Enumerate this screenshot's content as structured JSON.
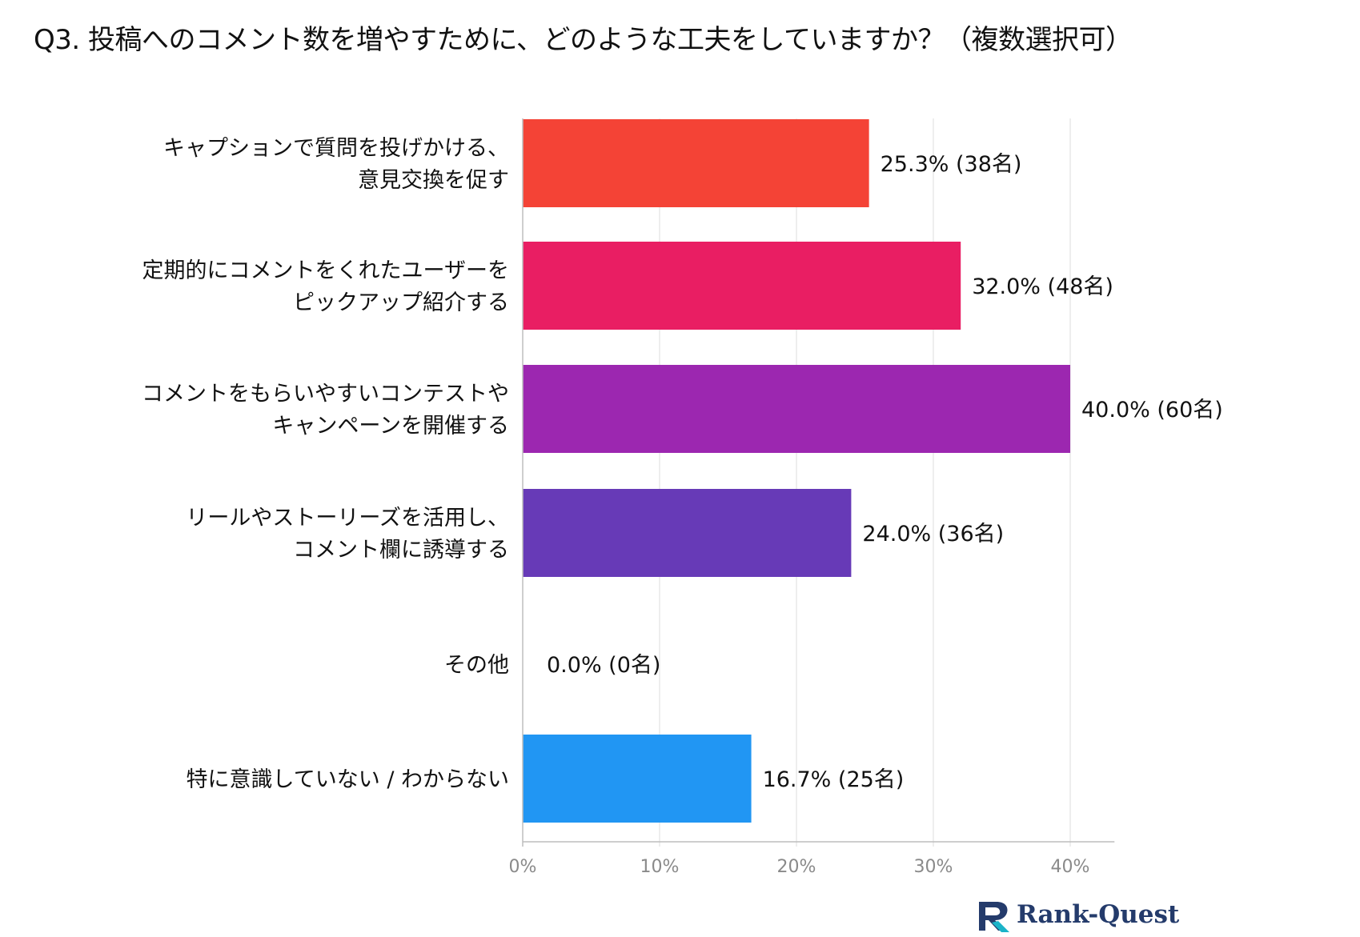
{
  "title": "Q3. 投稿へのコメント数を増やすために、どのような工夫をしていますか？（複数選択可）",
  "chart_data": {
    "type": "bar",
    "orientation": "horizontal",
    "categories": [
      [
        "キャプションで質問を投げかける、",
        "意見交換を促す"
      ],
      [
        "定期的にコメントをくれたユーザーを",
        "ピックアップ紹介する"
      ],
      [
        "コメントをもらいやすいコンテストや",
        "キャンペーンを開催する"
      ],
      [
        "リールやストーリーズを活用し、",
        "コメント欄に誘導する"
      ],
      [
        "その他"
      ],
      [
        "特に意識していない / わからない"
      ]
    ],
    "values": [
      25.3,
      32.0,
      40.0,
      24.0,
      0.0,
      16.7
    ],
    "data_labels": [
      "25.3% (38名)",
      "32.0% (48名)",
      "40.0% (60名)",
      "24.0% (36名)",
      "0.0% (0名)",
      "16.7% (25名)"
    ],
    "bar_colors": [
      "#f44336",
      "#e91e63",
      "#9c27b0",
      "#673ab7",
      "#9e9e9e",
      "#2196f3"
    ],
    "xlim": [
      0,
      43
    ],
    "xticks": [
      0,
      10,
      20,
      30,
      40
    ],
    "xtick_labels": [
      "0%",
      "10%",
      "20%",
      "30%",
      "40%"
    ],
    "grid": true,
    "legend": "none"
  },
  "logo": {
    "text": "Rank-Quest",
    "icon": "rank-quest-logo-icon",
    "color": "#243b6b",
    "accent": "#1bb3c8"
  }
}
